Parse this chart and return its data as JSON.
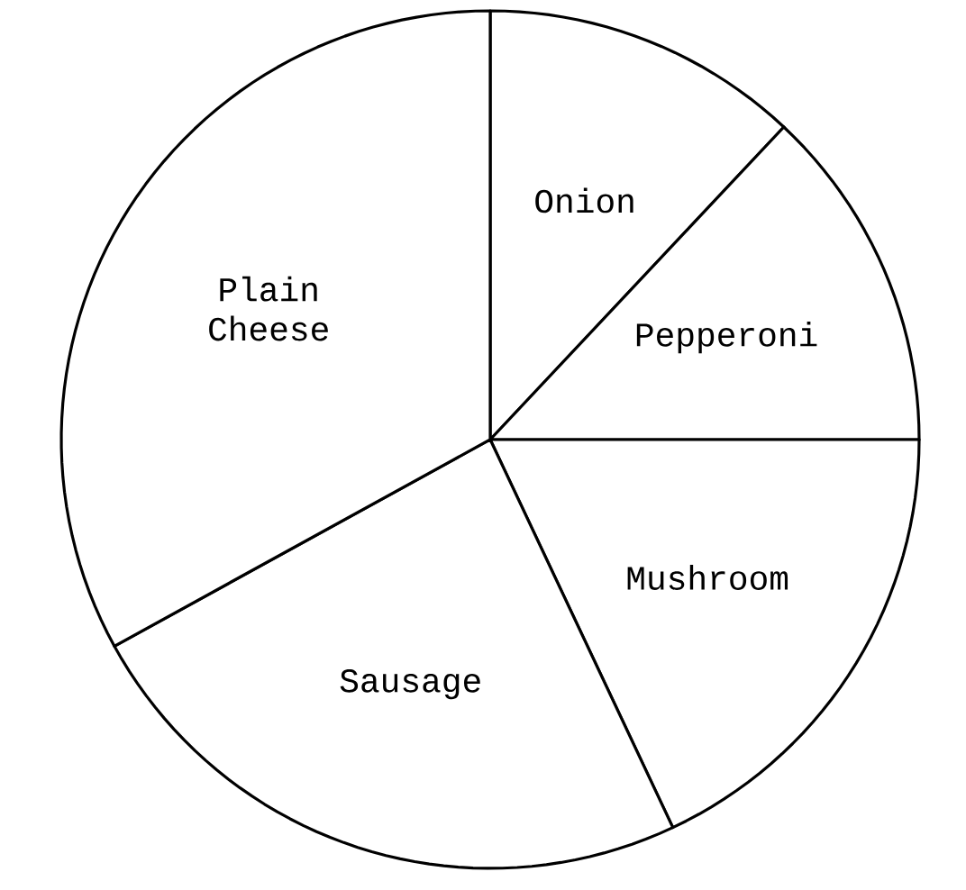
{
  "chart_data": {
    "type": "pie",
    "categories": [
      "Onion",
      "Pepperoni",
      "Mushroom",
      "Sausage",
      "Plain Cheese"
    ],
    "values": [
      12,
      13,
      18,
      24,
      33
    ],
    "colors": [
      "#ffffff",
      "#ffffff",
      "#ffffff",
      "#ffffff",
      "#ffffff"
    ]
  }
}
